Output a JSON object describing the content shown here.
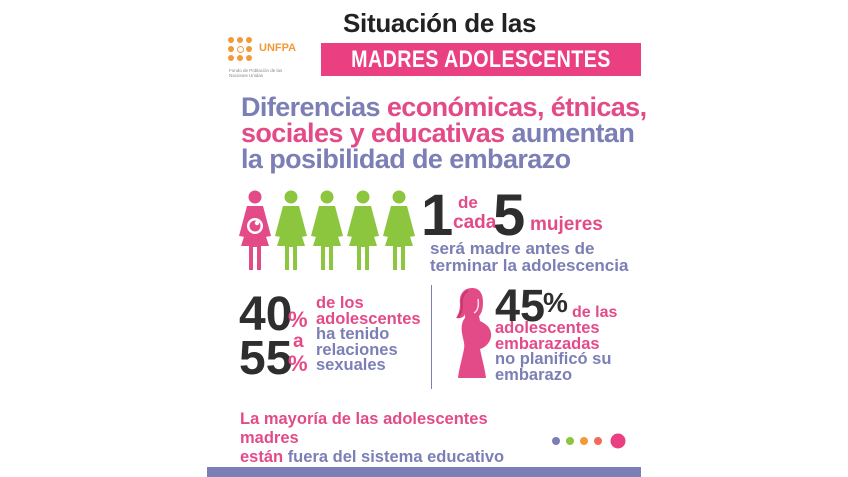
{
  "logo": {
    "name": "UNFPA",
    "subtitle": "Fondo de Población de las Naciones Unidas",
    "color": "#f29a38"
  },
  "title": {
    "line1": "Situación de las",
    "line2": "MADRES ADOLESCENTES",
    "band_color": "#ea3f80"
  },
  "headline": {
    "part1": "Diferencias ",
    "part2": "económicas, étnicas,",
    "part3": "sociales y educativas ",
    "part4": "aumentan",
    "part5": "la posibilidad de embarazo"
  },
  "stat1": {
    "number_a": "1",
    "de": "de",
    "cada": "cada",
    "number_b": "5",
    "mujeres": "mujeres",
    "line1": "será madre antes de",
    "line2": "terminar la adolescencia",
    "figures_total": 5,
    "figures_highlighted": 1
  },
  "stat2": {
    "low": "40",
    "high": "55",
    "pct": "%",
    "a": "a",
    "line1": "de los",
    "line2": "adolescentes",
    "line3": "ha tenido",
    "line4": "relaciones",
    "line5": "sexuales"
  },
  "stat3": {
    "number": "45",
    "pct": "%",
    "line1": "de las",
    "line2": "adolescentes",
    "line3": "embarazadas",
    "line4": "no planificó su",
    "line5": "embarazo"
  },
  "footer": {
    "line1": "La mayoría de las adolescentes madres",
    "line2a": "están ",
    "line2b": "fuera del sistema educativo"
  },
  "colors": {
    "pink": "#e34b88",
    "blue": "#7b7fb5",
    "green": "#8cc63f",
    "dark": "#2e2e2e",
    "dots": [
      "#7b7fb5",
      "#8cc63f",
      "#f29a38",
      "#f26a5a",
      "#ea3f80"
    ]
  }
}
